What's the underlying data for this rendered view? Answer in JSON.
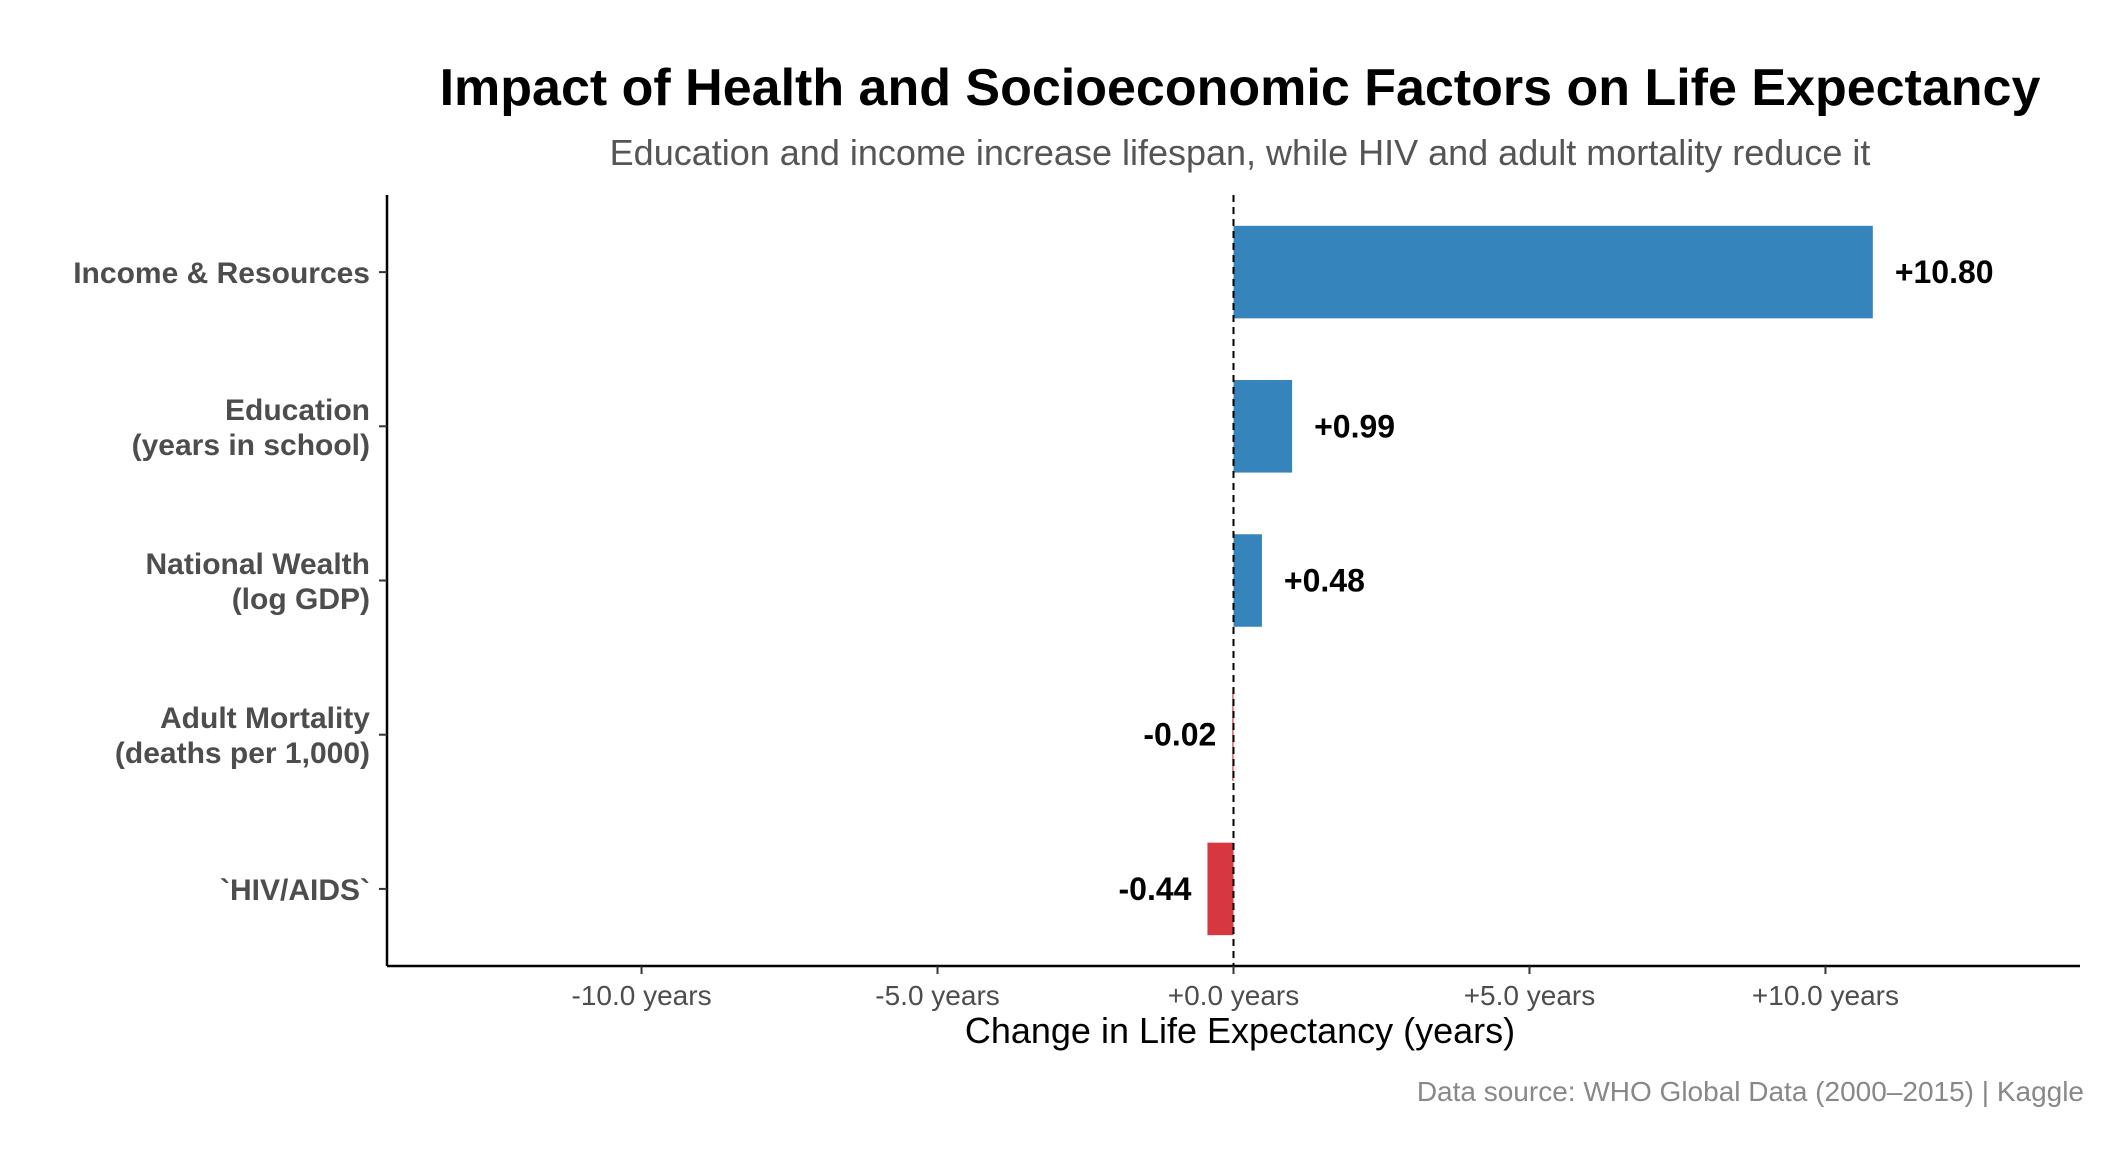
{
  "chart_data": {
    "type": "bar",
    "orientation": "horizontal",
    "title": "Impact of Health and Socioeconomic Factors on Life Expectancy",
    "subtitle": "Education and income increase lifespan, while HIV and adult mortality reduce it",
    "xlabel": "Change in Life Expectancy (years)",
    "caption": "Data source: WHO Global Data (2000–2015) | Kaggle",
    "xlim": [
      -14.3,
      14.3
    ],
    "x_ticks": [
      -10,
      -5,
      0,
      5,
      10
    ],
    "x_tick_labels": [
      "-10.0 years",
      "-5.0 years",
      "+0.0 years",
      "+5.0 years",
      "+10.0 years"
    ],
    "reference_line": 0,
    "categories": [
      [
        "Income & Resources"
      ],
      [
        "Education",
        "(years in school)"
      ],
      [
        "National Wealth",
        "(log GDP)"
      ],
      [
        "Adult Mortality",
        "(deaths per 1,000)"
      ],
      [
        "`HIV/AIDS`"
      ]
    ],
    "values": [
      10.8,
      0.99,
      0.48,
      -0.02,
      -0.44
    ],
    "value_labels": [
      "+10.80",
      "+0.99",
      "+0.48",
      "-0.02",
      "-0.44"
    ],
    "colors": {
      "positive": "#3584BC",
      "negative": "#D7373F"
    },
    "grid": false,
    "legend": "none"
  }
}
